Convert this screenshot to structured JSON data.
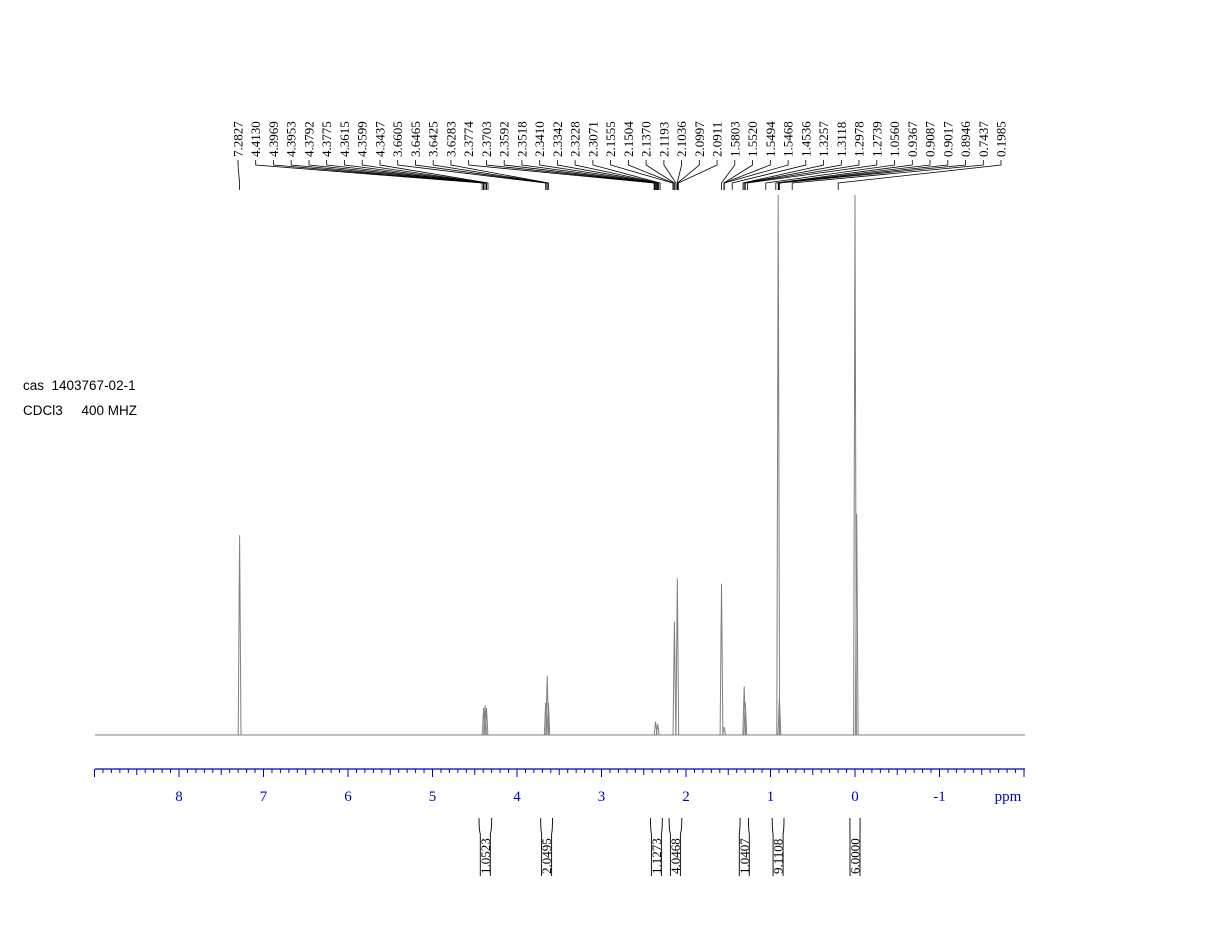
{
  "info": {
    "cas_line": "cas  1403767-02-1",
    "solvent_line": "CDCl3     400 MHZ"
  },
  "colors": {
    "axis": "#0000cc",
    "spectrum": "#808080",
    "labels": "#000000"
  },
  "chart_data": {
    "type": "line",
    "title": "",
    "xlabel": "ppm",
    "ylabel": "",
    "x_reversed": true,
    "xlim": [
      9.0,
      -2.0
    ],
    "x_ticks": [
      {
        "value": 8,
        "label": "8"
      },
      {
        "value": 7,
        "label": "7"
      },
      {
        "value": 6,
        "label": "6"
      },
      {
        "value": 5,
        "label": "5"
      },
      {
        "value": 4,
        "label": "4"
      },
      {
        "value": 3,
        "label": "3"
      },
      {
        "value": 2,
        "label": "2"
      },
      {
        "value": 1,
        "label": "1"
      },
      {
        "value": 0,
        "label": "0"
      },
      {
        "value": -1,
        "label": "-1"
      }
    ],
    "peak_labels": [
      "7.2827",
      "4.4130",
      "4.3969",
      "4.3953",
      "4.3792",
      "4.3775",
      "4.3615",
      "4.3599",
      "4.3437",
      "3.6605",
      "3.6465",
      "3.6425",
      "3.6283",
      "2.3774",
      "2.3703",
      "2.3592",
      "2.3518",
      "2.3410",
      "2.3342",
      "2.3228",
      "2.3071",
      "2.1555",
      "2.1504",
      "2.1370",
      "2.1193",
      "2.1036",
      "2.0997",
      "2.0911",
      "1.5803",
      "1.5520",
      "1.5494",
      "1.5468",
      "1.4536",
      "1.3257",
      "1.3118",
      "1.2978",
      "1.2739",
      "1.0560",
      "0.9367",
      "0.9087",
      "0.9017",
      "0.8946",
      "0.7437",
      "0.1985"
    ],
    "peaks": [
      {
        "ppm": 7.2827,
        "height": 0.37
      },
      {
        "ppm": 4.395,
        "height": 0.05
      },
      {
        "ppm": 4.378,
        "height": 0.055
      },
      {
        "ppm": 4.361,
        "height": 0.05
      },
      {
        "ppm": 3.66,
        "height": 0.06
      },
      {
        "ppm": 3.643,
        "height": 0.11
      },
      {
        "ppm": 3.628,
        "height": 0.06
      },
      {
        "ppm": 2.36,
        "height": 0.025
      },
      {
        "ppm": 2.335,
        "height": 0.02
      },
      {
        "ppm": 2.137,
        "height": 0.21
      },
      {
        "ppm": 2.103,
        "height": 0.29
      },
      {
        "ppm": 1.5803,
        "height": 0.28
      },
      {
        "ppm": 1.549,
        "height": 0.015
      },
      {
        "ppm": 1.3118,
        "height": 0.09
      },
      {
        "ppm": 1.2978,
        "height": 0.06
      },
      {
        "ppm": 0.9087,
        "height": 1.0
      },
      {
        "ppm": 0.8946,
        "height": 0.07
      },
      {
        "ppm": 0.0,
        "height": 1.0
      },
      {
        "ppm": -0.02,
        "height": 0.41
      }
    ],
    "integrals": [
      {
        "value": "1.0523",
        "from": 4.45,
        "to": 4.3
      },
      {
        "value": "2.0495",
        "from": 3.72,
        "to": 3.58
      },
      {
        "value": "1.1273",
        "from": 2.42,
        "to": 2.28
      },
      {
        "value": "4.0468",
        "from": 2.2,
        "to": 2.05
      },
      {
        "value": "1.0407",
        "from": 1.36,
        "to": 1.26
      },
      {
        "value": "9.1108",
        "from": 0.98,
        "to": 0.84
      },
      {
        "value": "6.0000",
        "from": 0.06,
        "to": -0.06
      }
    ]
  }
}
